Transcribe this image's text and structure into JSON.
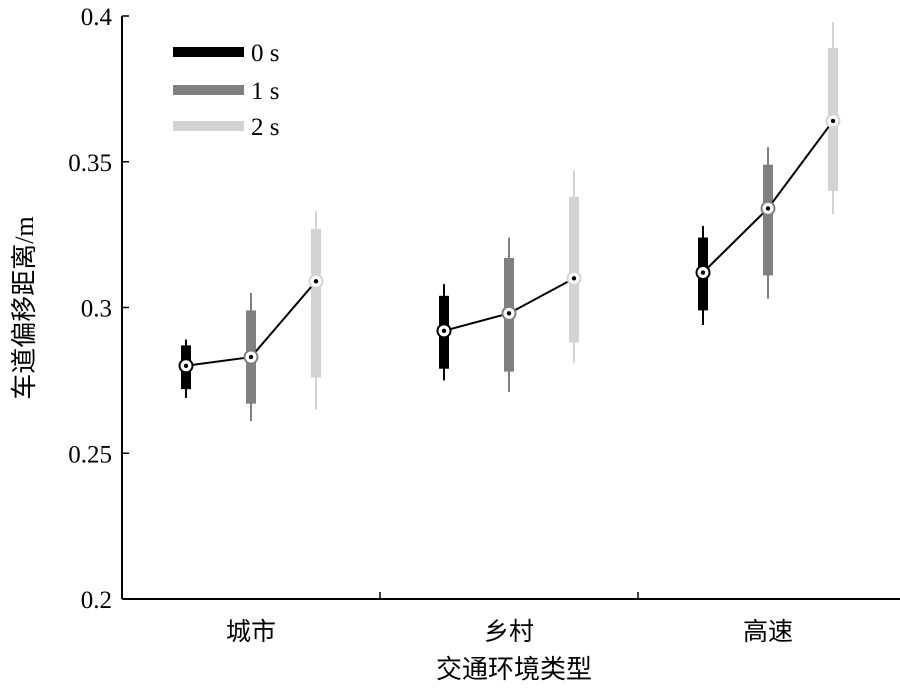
{
  "chart_data": {
    "type": "boxplot",
    "xlabel": "交通环境类型",
    "ylabel": "车道偏移距离/m",
    "ylim": [
      0.2,
      0.4
    ],
    "yticks": [
      "0.2",
      "0.25",
      "0.3",
      "0.35",
      "0.4"
    ],
    "categories": [
      "城市",
      "乡村",
      "高速"
    ],
    "legend_position": "top-left",
    "series": [
      {
        "name": "0 s",
        "color": "#000000",
        "boxes": [
          {
            "whisker_low": 0.269,
            "q1": 0.272,
            "median": 0.28,
            "q3": 0.287,
            "whisker_high": 0.289
          },
          {
            "whisker_low": 0.275,
            "q1": 0.279,
            "median": 0.292,
            "q3": 0.304,
            "whisker_high": 0.308
          },
          {
            "whisker_low": 0.294,
            "q1": 0.299,
            "median": 0.312,
            "q3": 0.324,
            "whisker_high": 0.328
          }
        ]
      },
      {
        "name": "1 s",
        "color": "#808080",
        "boxes": [
          {
            "whisker_low": 0.261,
            "q1": 0.267,
            "median": 0.283,
            "q3": 0.299,
            "whisker_high": 0.305
          },
          {
            "whisker_low": 0.271,
            "q1": 0.278,
            "median": 0.298,
            "q3": 0.317,
            "whisker_high": 0.324
          },
          {
            "whisker_low": 0.303,
            "q1": 0.311,
            "median": 0.334,
            "q3": 0.349,
            "whisker_high": 0.355
          }
        ]
      },
      {
        "name": "2 s",
        "color": "#d3d3d3",
        "boxes": [
          {
            "whisker_low": 0.265,
            "q1": 0.276,
            "median": 0.309,
            "q3": 0.327,
            "whisker_high": 0.333
          },
          {
            "whisker_low": 0.281,
            "q1": 0.288,
            "median": 0.31,
            "q3": 0.338,
            "whisker_high": 0.347
          },
          {
            "whisker_low": 0.332,
            "q1": 0.34,
            "median": 0.364,
            "q3": 0.389,
            "whisker_high": 0.398
          }
        ]
      }
    ]
  }
}
